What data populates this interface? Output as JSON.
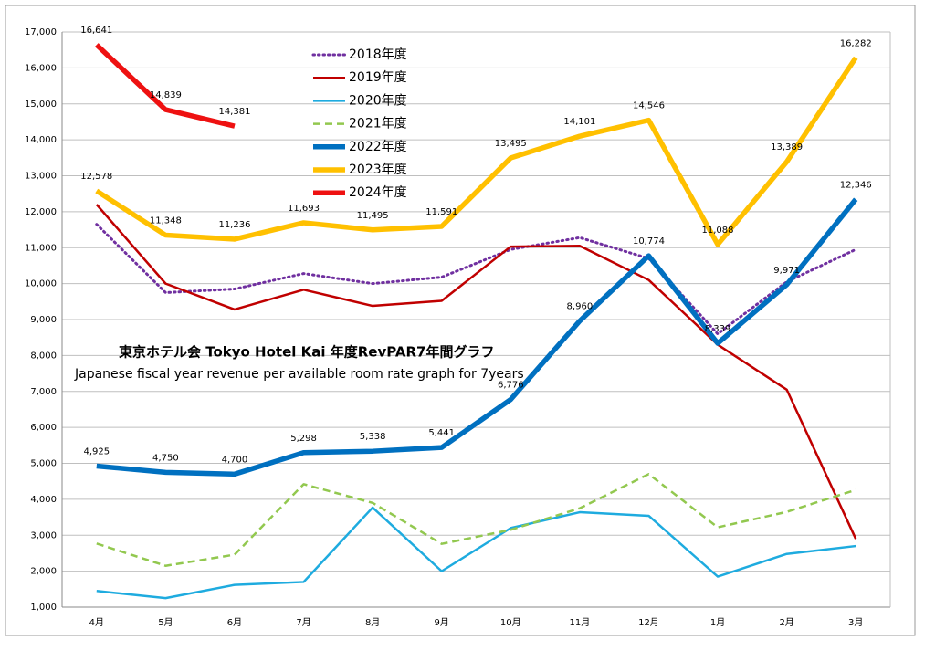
{
  "chart_data": {
    "type": "line",
    "title": "東京ホテル会 Tokyo Hotel Kai  年度RevPAR7年間グラフ",
    "subtitle": "Japanese fiscal year revenue per available room rate graph for 7years",
    "categories": [
      "4月",
      "5月",
      "6月",
      "7月",
      "8月",
      "9月",
      "10月",
      "11月",
      "12月",
      "1月",
      "2月",
      "3月"
    ],
    "ylim": [
      1000,
      17000
    ],
    "yticks": [
      {
        "value": 1000,
        "label": "1,000"
      },
      {
        "value": 2000,
        "label": "2,000"
      },
      {
        "value": 3000,
        "label": "3,000"
      },
      {
        "value": 4000,
        "label": "4,000"
      },
      {
        "value": 5000,
        "label": "5,000"
      },
      {
        "value": 6000,
        "label": "6,000"
      },
      {
        "value": 7000,
        "label": "7,000"
      },
      {
        "value": 8000,
        "label": "8,000"
      },
      {
        "value": 9000,
        "label": "9,000"
      },
      {
        "value": 10000,
        "label": "10,000"
      },
      {
        "value": 11000,
        "label": "11,000"
      },
      {
        "value": 12000,
        "label": "12,000"
      },
      {
        "value": 13000,
        "label": "13,000"
      },
      {
        "value": 14000,
        "label": "14,000"
      },
      {
        "value": 15000,
        "label": "15,000"
      },
      {
        "value": 16000,
        "label": "16,000"
      },
      {
        "value": 17000,
        "label": "17,000"
      }
    ],
    "grid": true,
    "series": [
      {
        "name": "2018年度",
        "color": "#7030a0",
        "line_style": "dotted",
        "values": [
          11650,
          9750,
          9850,
          10280,
          10000,
          10180,
          10950,
          11280,
          10700,
          8600,
          10050,
          10950
        ]
      },
      {
        "name": "2019年度",
        "color": "#c00000",
        "line_style": "solid",
        "values": [
          12200,
          10000,
          9280,
          9830,
          9380,
          9520,
          11030,
          11050,
          10100,
          8300,
          7050,
          2900
        ]
      },
      {
        "name": "2020年度",
        "color": "#1eabdf",
        "line_style": "solid",
        "values": [
          1450,
          1250,
          1620,
          1700,
          3770,
          2000,
          3200,
          3640,
          3540,
          1850,
          2480,
          2700
        ]
      },
      {
        "name": "2021年度",
        "color": "#92c84f",
        "line_style": "dashed",
        "values": [
          2770,
          2150,
          2460,
          4420,
          3900,
          2760,
          3150,
          3750,
          4700,
          3220,
          3650,
          4260
        ]
      },
      {
        "name": "2022年度",
        "color": "#0070c0",
        "line_style": "solid",
        "bold": true,
        "values": [
          4925,
          4750,
          4700,
          5298,
          5338,
          5441,
          6776,
          8960,
          10774,
          8339,
          9971,
          12346
        ],
        "value_labels": [
          "4,925",
          "4,750",
          "4,700",
          "5,298",
          "5,338",
          "5,441",
          "6,776",
          "8,960",
          "10,774",
          "8,339",
          "9,971",
          "12,346"
        ]
      },
      {
        "name": "2023年度",
        "color": "#ffc000",
        "line_style": "solid",
        "bold": true,
        "values": [
          12578,
          11348,
          11236,
          11693,
          11495,
          11591,
          13495,
          14101,
          14546,
          11088,
          13389,
          16282
        ],
        "value_labels": [
          "12,578",
          "11,348",
          "11,236",
          "11,693",
          "11,495",
          "11,591",
          "13,495",
          "14,101",
          "14,546",
          "11,088",
          "13,389",
          "16,282"
        ]
      },
      {
        "name": "2024年度",
        "color": "#ee1111",
        "line_style": "solid",
        "bold": true,
        "values": [
          16641,
          14839,
          14381,
          null,
          null,
          null,
          null,
          null,
          null,
          null,
          null,
          null
        ],
        "value_labels": [
          "16,641",
          "14,839",
          "14,381",
          null,
          null,
          null,
          null,
          null,
          null,
          null,
          null,
          null
        ]
      }
    ]
  }
}
